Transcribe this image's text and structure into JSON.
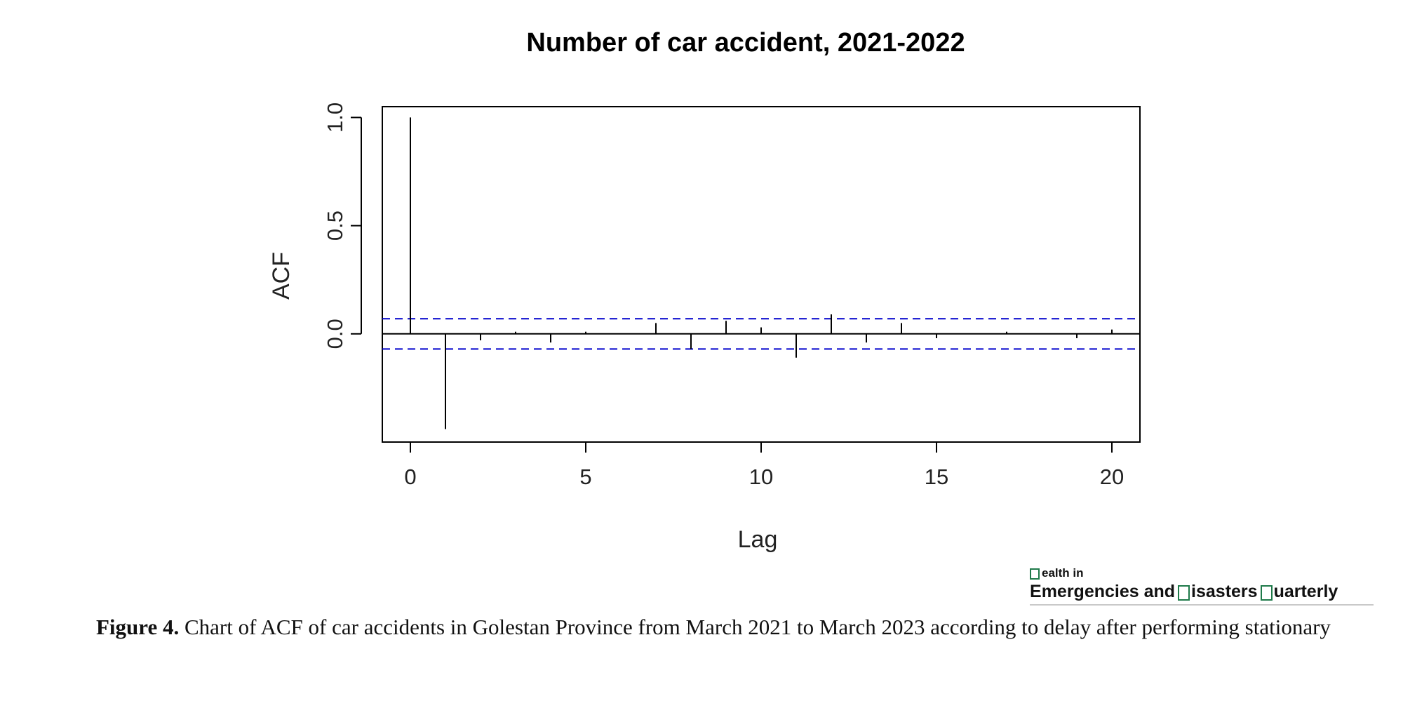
{
  "chart_data": {
    "type": "bar",
    "title": "Number of car accident, 2021-2022",
    "xlabel": "Lag",
    "ylabel": "ACF",
    "x": [
      0,
      1,
      2,
      3,
      4,
      5,
      6,
      7,
      8,
      9,
      10,
      11,
      12,
      13,
      14,
      15,
      16,
      17,
      18,
      19,
      20
    ],
    "values": [
      1.0,
      -0.44,
      -0.03,
      0.01,
      -0.04,
      0.01,
      0.0,
      0.05,
      -0.07,
      0.06,
      0.03,
      -0.11,
      0.09,
      -0.04,
      0.05,
      -0.02,
      0.0,
      0.01,
      0.0,
      -0.02,
      0.02
    ],
    "confidence_band": [
      -0.07,
      0.07
    ],
    "xlim": [
      -0.8,
      20.8
    ],
    "ylim": [
      -0.5,
      1.05
    ],
    "xticks": [
      0,
      5,
      10,
      15,
      20
    ],
    "yticks": [
      0.0,
      0.5,
      1.0
    ],
    "xtick_labels": [
      "0",
      "5",
      "10",
      "15",
      "20"
    ],
    "ytick_labels": [
      "0.0",
      "0.5",
      "1.0"
    ],
    "colors": {
      "bars": "#000000",
      "band": "#0000cc",
      "axis": "#000000"
    },
    "grid": false,
    "legend": "none"
  },
  "logo": {
    "line1": "ealth in",
    "line2_a": "mergencies and",
    "line2_b": "isasters",
    "line2_c": "uarterly",
    "letter_e": "E"
  },
  "caption": {
    "label": "Figure 4.",
    "text": " Chart of ACF of car accidents in Golestan Province from March 2021 to March 2023 according to delay after performing stationary"
  }
}
